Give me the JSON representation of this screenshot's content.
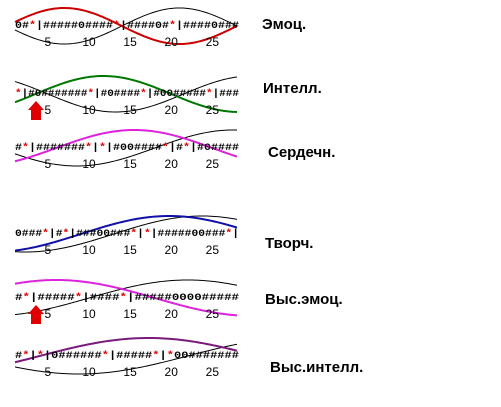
{
  "chart_data": {
    "type": "line",
    "title": "",
    "xlabel": "",
    "ylabel": "",
    "x_ticks": [
      5,
      10,
      15,
      20,
      25
    ],
    "xlim": [
      1,
      28
    ],
    "grid": false,
    "legend": "none",
    "colors": {
      "background_wave": "#000000",
      "arrow": "#e00000",
      "asterisk": "#e00000",
      "text": "#000000"
    },
    "panels": [
      {
        "label": "Эмоц.",
        "code": "0#*|#####0####*|####0#*|####0###",
        "series": [
          {
            "color": "#cc0000",
            "phase": 0.0,
            "period": 28
          },
          {
            "color": "#000000",
            "phase": 14.0,
            "period": 28
          }
        ],
        "arrow": false
      },
      {
        "label": "Интелл.",
        "code": "*|#0#######*|#0####*|#00#####*|###",
        "series": [
          {
            "color": "#007700",
            "phase": 3.5,
            "period": 33
          },
          {
            "color": "#000000",
            "phase": 21.5,
            "period": 33
          }
        ],
        "arrow": true
      },
      {
        "label": "Сердечн.",
        "code": "#*|#######*|*|#00####*|#*|#0####",
        "series": [
          {
            "color": "#dd22dd",
            "phase": 6.0,
            "period": 38
          },
          {
            "color": "#000000",
            "phase": 18.0,
            "period": 38
          }
        ],
        "arrow": false
      },
      {
        "label": "Творч.",
        "code": "0###*|#*|###00###*|*|#####00###*|",
        "series": [
          {
            "color": "#1111aa",
            "phase": 9.0,
            "period": 43
          },
          {
            "color": "#000000",
            "phase": 13.0,
            "period": 43
          }
        ],
        "arrow": false
      },
      {
        "label": "Выс.эмоц.",
        "code": "#*|#####*|####*|#####0000#####",
        "series": [
          {
            "color": "#dd22dd",
            "phase": -6.0,
            "period": 48
          },
          {
            "color": "#000000",
            "phase": 10.0,
            "period": 48
          }
        ],
        "arrow": true
      },
      {
        "label": "Выс.интелл.",
        "code": "#*|*|0######*|#####*|*00#######",
        "series": [
          {
            "color": "#7a1a7a",
            "phase": 4.0,
            "period": 53
          },
          {
            "color": "#000000",
            "phase": 22.0,
            "period": 53
          }
        ],
        "arrow": false
      }
    ]
  }
}
